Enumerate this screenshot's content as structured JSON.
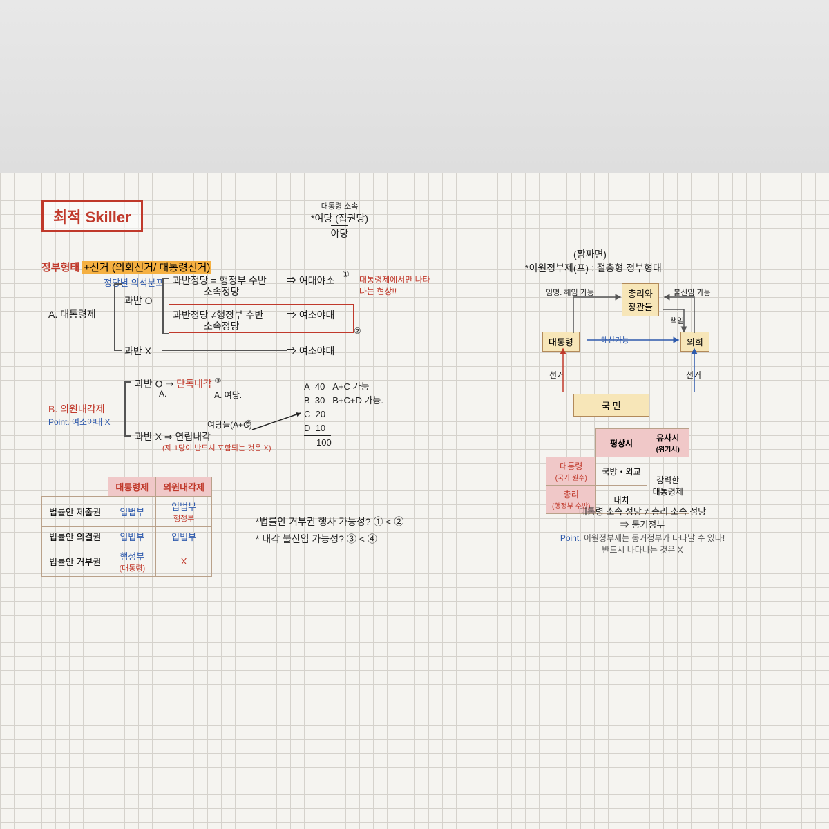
{
  "title": "최적 Skiller",
  "topic": {
    "prefix": "정부형태",
    "highlight": "+선거 (의회선거/ 대통령선거)",
    "sub": "정당별 의석분포"
  },
  "top_note": {
    "small": "대통령 소속",
    "l1": "*여당 (집권당)",
    "l2": "야당"
  },
  "sectionA": {
    "label": "A. 대통령제",
    "b1": "과반 O",
    "b2": "과반 X",
    "r1a": "과반정당 = 행정부 수반",
    "r1b": "소속정당",
    "r1out": "⇒ 여대야소",
    "r1num": "①",
    "r1note": "대통령제에서만 나타나는 현상!!",
    "r2a": "과반정당 ≠행정부 수반",
    "r2b": "소속정당",
    "r2out": "⇒ 여소야대",
    "r2num": "②",
    "r3out": "⇒ 여소야대"
  },
  "sectionB": {
    "label": "B. 의원내각제",
    "point": "Point. 여소야대 X",
    "b1": "과반 O ⇒",
    "b1red": "단독내각",
    "b1num": "③",
    "b1sub": "A.",
    "b1subR": "A. 여당.",
    "b2a": "과반 X ⇒ 연립내각",
    "b2note": "(제 1당이 반드시 포함되는 것은 X)",
    "b2num": "④",
    "b2mid": "여당들(A+C)",
    "tally": {
      "rows": [
        {
          "p": "A",
          "s": "40",
          "c": "A+C 가능"
        },
        {
          "p": "B",
          "s": "30",
          "c": "B+C+D 가능."
        },
        {
          "p": "C",
          "s": "20",
          "c": ""
        },
        {
          "p": "D",
          "s": "10",
          "c": ""
        }
      ],
      "total": "100"
    }
  },
  "cmp": {
    "h1": "대통령제",
    "h2": "의원내각제",
    "rows": [
      {
        "k": "법률안 제출권",
        "a": "입법부",
        "b": "입법부",
        "bsub": "행정부"
      },
      {
        "k": "법률안 의결권",
        "a": "입법부",
        "b": "입법부",
        "bsub": ""
      },
      {
        "k": "법률안 거부권",
        "a": "행정부",
        "asub": "(대통령)",
        "b": "X",
        "bsub": ""
      }
    ]
  },
  "qa": {
    "q1": "*법률안 거부권 행사 가능성? ① < ②",
    "q2": "* 내각 불신임 가능성? ③ < ④"
  },
  "right": {
    "heading": "(짬짜면)",
    "sub": "*이원정부제(프) : 절충형 정부형태",
    "n_pm": "총리와\n장관들",
    "n_pres": "대통령",
    "n_parl": "의회",
    "n_people": "국      민",
    "e_appoint": "임명. 해임 가능",
    "e_noconf": "불신임 가능",
    "e_resp": "책임",
    "e_dissolve": "해산가능",
    "e_vote1": "선거",
    "e_vote2": "선거",
    "tbl": {
      "h1": "평상시",
      "h2": "유사시",
      "h2sub": "(위기시)",
      "r1k": "대통령",
      "r1ksub": "(국가 원수)",
      "r1a": "국방・외교",
      "r2k": "총리",
      "r2ksub": "(행정부 수반)",
      "r2a": "내치",
      "merge": "강력한\n대통령제"
    },
    "foot1": "대통령 소속 정당 ≠ 총리 소속 정당",
    "foot2": "⇒ 동거정부",
    "point": "Point. 이원정부제는 동거정부가 나타날 수 있다!\n반드시 나타나는 것은 X"
  },
  "colors": {
    "red": "#c0392b",
    "blue": "#2e5aac",
    "box_border": "#b28a5a",
    "box_fill": "#f7e6b8",
    "pink": "#f0c8c8"
  }
}
